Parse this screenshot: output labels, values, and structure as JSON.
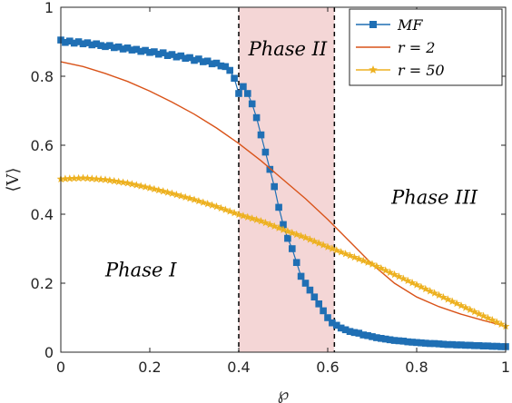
{
  "chart_data": {
    "type": "line",
    "xlabel": "℘",
    "ylabel": "⟨V⟩",
    "xlim": [
      0,
      1
    ],
    "ylim": [
      0,
      1
    ],
    "x_ticks": [
      "0",
      "0.2",
      "0.4",
      "0.6",
      "0.8",
      "1"
    ],
    "y_ticks": [
      "0",
      "0.2",
      "0.4",
      "0.6",
      "0.8",
      "1"
    ],
    "grid": false,
    "legend_position": "top-right",
    "shaded_region": {
      "x": [
        0.4,
        0.615
      ],
      "color": "#f4d6d6"
    },
    "vertical_lines": [
      0.4,
      0.615
    ],
    "annotations": [
      {
        "text": "Phase I",
        "x": 0.18,
        "y": 0.22
      },
      {
        "text": "Phase II",
        "x": 0.51,
        "y": 0.86
      },
      {
        "text": "Phase III",
        "x": 0.84,
        "y": 0.43
      }
    ],
    "series": [
      {
        "name": "MF",
        "color": "#1f6fb4",
        "marker": "square",
        "x": [
          0.0,
          0.01,
          0.02,
          0.03,
          0.04,
          0.05,
          0.06,
          0.07,
          0.08,
          0.09,
          0.1,
          0.11,
          0.12,
          0.13,
          0.14,
          0.15,
          0.16,
          0.17,
          0.18,
          0.19,
          0.2,
          0.21,
          0.22,
          0.23,
          0.24,
          0.25,
          0.26,
          0.27,
          0.28,
          0.29,
          0.3,
          0.31,
          0.32,
          0.33,
          0.34,
          0.35,
          0.36,
          0.37,
          0.38,
          0.39,
          0.4,
          0.41,
          0.42,
          0.43,
          0.44,
          0.45,
          0.46,
          0.47,
          0.48,
          0.49,
          0.5,
          0.51,
          0.52,
          0.53,
          0.54,
          0.55,
          0.56,
          0.57,
          0.58,
          0.59,
          0.6,
          0.61,
          0.62,
          0.63,
          0.64,
          0.65,
          0.66,
          0.67,
          0.68,
          0.69,
          0.7,
          0.71,
          0.72,
          0.73,
          0.74,
          0.75,
          0.76,
          0.77,
          0.78,
          0.79,
          0.8,
          0.81,
          0.82,
          0.83,
          0.84,
          0.85,
          0.86,
          0.87,
          0.88,
          0.89,
          0.9,
          0.91,
          0.92,
          0.93,
          0.94,
          0.95,
          0.96,
          0.97,
          0.98,
          0.99,
          1.0
        ],
        "values": [
          0.905,
          0.898,
          0.902,
          0.896,
          0.9,
          0.894,
          0.897,
          0.891,
          0.894,
          0.889,
          0.886,
          0.889,
          0.883,
          0.885,
          0.879,
          0.882,
          0.876,
          0.878,
          0.872,
          0.875,
          0.869,
          0.871,
          0.864,
          0.868,
          0.86,
          0.863,
          0.856,
          0.859,
          0.852,
          0.854,
          0.846,
          0.85,
          0.842,
          0.844,
          0.836,
          0.838,
          0.83,
          0.828,
          0.817,
          0.794,
          0.75,
          0.77,
          0.75,
          0.72,
          0.68,
          0.63,
          0.58,
          0.53,
          0.48,
          0.42,
          0.37,
          0.33,
          0.3,
          0.26,
          0.22,
          0.2,
          0.18,
          0.16,
          0.14,
          0.12,
          0.1,
          0.085,
          0.078,
          0.07,
          0.065,
          0.06,
          0.057,
          0.055,
          0.05,
          0.048,
          0.045,
          0.042,
          0.04,
          0.038,
          0.036,
          0.034,
          0.033,
          0.032,
          0.03,
          0.029,
          0.028,
          0.027,
          0.026,
          0.025,
          0.025,
          0.024,
          0.023,
          0.022,
          0.022,
          0.021,
          0.021,
          0.02,
          0.02,
          0.019,
          0.019,
          0.018,
          0.018,
          0.017,
          0.017,
          0.016,
          0.016
        ]
      },
      {
        "name": "r = 2",
        "color": "#d95319",
        "marker": "none",
        "x": [
          0.0,
          0.05,
          0.1,
          0.15,
          0.2,
          0.25,
          0.3,
          0.35,
          0.4,
          0.45,
          0.5,
          0.55,
          0.6,
          0.65,
          0.7,
          0.75,
          0.8,
          0.85,
          0.9,
          0.95,
          1.0
        ],
        "values": [
          0.842,
          0.828,
          0.808,
          0.785,
          0.757,
          0.725,
          0.69,
          0.65,
          0.605,
          0.555,
          0.5,
          0.445,
          0.385,
          0.32,
          0.255,
          0.2,
          0.16,
          0.132,
          0.11,
          0.092,
          0.075
        ]
      },
      {
        "name": "r = 50",
        "color": "#edb120",
        "marker": "star",
        "x": [
          0.0,
          0.05,
          0.1,
          0.15,
          0.2,
          0.25,
          0.3,
          0.35,
          0.4,
          0.45,
          0.5,
          0.55,
          0.6,
          0.65,
          0.7,
          0.75,
          0.8,
          0.85,
          0.9,
          0.95,
          1.0
        ],
        "values": [
          0.502,
          0.505,
          0.5,
          0.49,
          0.476,
          0.46,
          0.442,
          0.422,
          0.399,
          0.38,
          0.355,
          0.332,
          0.305,
          0.28,
          0.255,
          0.225,
          0.195,
          0.165,
          0.135,
          0.105,
          0.075
        ]
      }
    ]
  }
}
